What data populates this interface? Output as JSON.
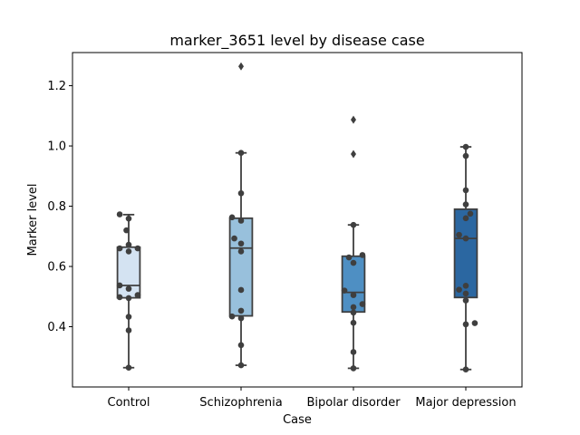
{
  "chart_data": {
    "type": "box",
    "title": "marker_3651 level by disease case",
    "xlabel": "Case",
    "ylabel": "Marker level",
    "categories": [
      "Control",
      "Schizophrenia",
      "Bipolar disorder",
      "Major depression"
    ],
    "ylim": [
      0.2,
      1.31
    ],
    "yticks": [
      0.4,
      0.6,
      0.8,
      1.0,
      1.2
    ],
    "ytick_labels": [
      "0.4",
      "0.6",
      "0.8",
      "1.0",
      "1.2"
    ],
    "grid": false,
    "colors": [
      "#d4e3f2",
      "#98c0dc",
      "#4e8fc3",
      "#2b67a1"
    ],
    "boxes": [
      {
        "q1": 0.496,
        "median": 0.537,
        "q3": 0.664,
        "whisker_low": 0.264,
        "whisker_high": 0.772,
        "outliers": []
      },
      {
        "q1": 0.436,
        "median": 0.661,
        "q3": 0.76,
        "whisker_low": 0.272,
        "whisker_high": 0.977,
        "outliers": [
          1.264
        ]
      },
      {
        "q1": 0.449,
        "median": 0.514,
        "q3": 0.634,
        "whisker_low": 0.262,
        "whisker_high": 0.738,
        "outliers": [
          0.973,
          1.087
        ]
      },
      {
        "q1": 0.497,
        "median": 0.693,
        "q3": 0.79,
        "whisker_low": 0.258,
        "whisker_high": 0.997,
        "outliers": []
      }
    ],
    "points": [
      [
        {
          "x": -0.08,
          "y": 0.773
        },
        {
          "x": 0.0,
          "y": 0.759
        },
        {
          "x": -0.02,
          "y": 0.72
        },
        {
          "x": 0.0,
          "y": 0.672
        },
        {
          "x": -0.08,
          "y": 0.66
        },
        {
          "x": 0.08,
          "y": 0.66
        },
        {
          "x": 0.0,
          "y": 0.65
        },
        {
          "x": -0.08,
          "y": 0.537
        },
        {
          "x": 0.0,
          "y": 0.526
        },
        {
          "x": 0.08,
          "y": 0.505
        },
        {
          "x": -0.08,
          "y": 0.498
        },
        {
          "x": 0.0,
          "y": 0.495
        },
        {
          "x": 0.0,
          "y": 0.433
        },
        {
          "x": 0.0,
          "y": 0.388
        },
        {
          "x": 0.0,
          "y": 0.264
        }
      ],
      [
        {
          "x": 0.0,
          "y": 0.977
        },
        {
          "x": 0.0,
          "y": 0.843
        },
        {
          "x": -0.08,
          "y": 0.763
        },
        {
          "x": 0.0,
          "y": 0.752
        },
        {
          "x": -0.06,
          "y": 0.693
        },
        {
          "x": 0.0,
          "y": 0.676
        },
        {
          "x": 0.0,
          "y": 0.65
        },
        {
          "x": 0.0,
          "y": 0.522
        },
        {
          "x": 0.0,
          "y": 0.453
        },
        {
          "x": -0.08,
          "y": 0.434
        },
        {
          "x": 0.0,
          "y": 0.428
        },
        {
          "x": 0.0,
          "y": 0.339
        },
        {
          "x": 0.0,
          "y": 0.272
        }
      ],
      [
        {
          "x": 0.0,
          "y": 0.738
        },
        {
          "x": 0.08,
          "y": 0.638
        },
        {
          "x": -0.04,
          "y": 0.63
        },
        {
          "x": 0.0,
          "y": 0.612
        },
        {
          "x": -0.08,
          "y": 0.52
        },
        {
          "x": 0.0,
          "y": 0.505
        },
        {
          "x": 0.08,
          "y": 0.475
        },
        {
          "x": 0.0,
          "y": 0.465
        },
        {
          "x": 0.0,
          "y": 0.447
        },
        {
          "x": 0.0,
          "y": 0.413
        },
        {
          "x": 0.0,
          "y": 0.316
        },
        {
          "x": 0.0,
          "y": 0.262
        }
      ],
      [
        {
          "x": 0.0,
          "y": 0.997
        },
        {
          "x": 0.0,
          "y": 0.967
        },
        {
          "x": 0.0,
          "y": 0.853
        },
        {
          "x": 0.0,
          "y": 0.806
        },
        {
          "x": 0.04,
          "y": 0.775
        },
        {
          "x": 0.0,
          "y": 0.76
        },
        {
          "x": -0.06,
          "y": 0.705
        },
        {
          "x": 0.0,
          "y": 0.693
        },
        {
          "x": -0.06,
          "y": 0.523
        },
        {
          "x": 0.0,
          "y": 0.536
        },
        {
          "x": 0.0,
          "y": 0.51
        },
        {
          "x": 0.0,
          "y": 0.487
        },
        {
          "x": 0.0,
          "y": 0.408
        },
        {
          "x": 0.08,
          "y": 0.412
        },
        {
          "x": 0.0,
          "y": 0.258
        }
      ]
    ]
  }
}
